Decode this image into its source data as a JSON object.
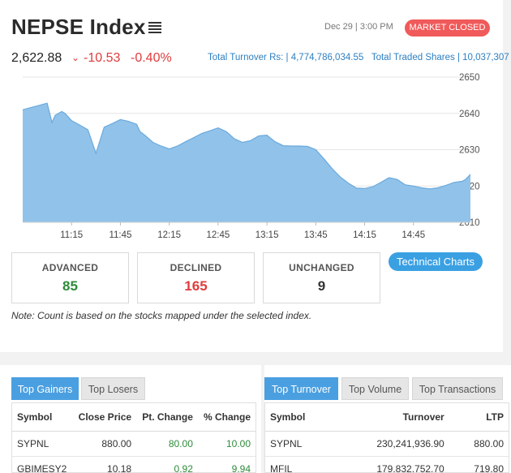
{
  "header": {
    "title": "NEPSE Index",
    "datetime": "Dec 29 | 3:00 PM",
    "market_status": "MARKET CLOSED"
  },
  "index": {
    "value": "2,622.88",
    "change_points": "-10.53",
    "change_percent": "-0.40%",
    "turnover_label": "Total Turnover Rs: | ",
    "turnover_value": "4,774,786,034.55",
    "shares_label": "Total Traded Shares | ",
    "shares_value": "10,037,307"
  },
  "chart_data": {
    "type": "area",
    "x_ticks": [
      "11:15",
      "11:45",
      "12:15",
      "12:45",
      "13:15",
      "13:45",
      "14:15",
      "14:45"
    ],
    "y_ticks": [
      2650,
      2640,
      2630,
      2620,
      2610
    ],
    "ylim": [
      2610,
      2650
    ],
    "x_range_minutes": [
      0,
      275
    ],
    "series": [
      {
        "x": [
          0,
          5,
          10,
          15,
          18,
          20,
          24,
          26,
          28,
          30,
          35,
          40,
          45,
          50,
          55,
          60,
          65,
          70,
          72,
          75,
          80,
          85,
          90,
          95,
          100,
          105,
          110,
          115,
          120,
          125,
          130,
          135,
          140,
          145,
          150,
          155,
          160,
          165,
          170,
          175,
          180,
          185,
          190,
          195,
          200,
          205,
          210,
          215,
          220,
          225,
          230,
          235,
          240,
          245,
          250,
          255,
          260,
          265,
          270,
          272,
          275
        ],
        "y": [
          2641,
          2641.6,
          2642.2,
          2642.8,
          2637.5,
          2639.5,
          2640.5,
          2640.0,
          2639.0,
          2638.0,
          2636.8,
          2635.5,
          2629,
          2636.2,
          2637.2,
          2638.3,
          2637.8,
          2637.0,
          2635,
          2634.0,
          2632.0,
          2631.0,
          2630.2,
          2631.0,
          2632.2,
          2633.3,
          2634.5,
          2635.2,
          2636.0,
          2635.0,
          2633.0,
          2632.0,
          2632.5,
          2633.8,
          2634.0,
          2632.2,
          2631.1,
          2631.0,
          2631.0,
          2630.9,
          2630.0,
          2627.5,
          2624.8,
          2622.5,
          2620.8,
          2619.4,
          2619.3,
          2619.8,
          2621.0,
          2622.3,
          2621.8,
          2620.3,
          2620.0,
          2619.5,
          2619.2,
          2619.5,
          2620.2,
          2621.0,
          2621.3,
          2621.8,
          2623.2
        ]
      }
    ],
    "fill_color": "#91c3ea",
    "line_color": "#6aa9dd",
    "grid": true
  },
  "stats": {
    "advanced_label": "ADVANCED",
    "advanced_value": "85",
    "declined_label": "DECLINED",
    "declined_value": "165",
    "unchanged_label": "UNCHANGED",
    "unchanged_value": "9"
  },
  "actions": {
    "technical_charts": "Technical Charts"
  },
  "note": "Note: Count is based on the stocks mapped under the selected index.",
  "gainers_panel": {
    "tabs": [
      "Top Gainers",
      "Top Losers"
    ],
    "columns": [
      "Symbol",
      "Close Price",
      "Pt. Change",
      "% Change"
    ],
    "rows": [
      [
        "SYPNL",
        "880.00",
        "80.00",
        "10.00"
      ],
      [
        "GBIMESY2",
        "10.18",
        "0.92",
        "9.94"
      ]
    ]
  },
  "turnover_panel": {
    "tabs": [
      "Top Turnover",
      "Top Volume",
      "Top Transactions"
    ],
    "columns": [
      "Symbol",
      "Turnover",
      "LTP"
    ],
    "rows": [
      [
        "SYPNL",
        "230,241,936.90",
        "880.00"
      ],
      [
        "MFIL",
        "179,832,752.70",
        "719.80"
      ]
    ]
  },
  "colors": {
    "accent": "#4a9fe0",
    "negative": "#e03c3c",
    "positive": "#2e8b3a",
    "badge": "#f05a5a"
  }
}
